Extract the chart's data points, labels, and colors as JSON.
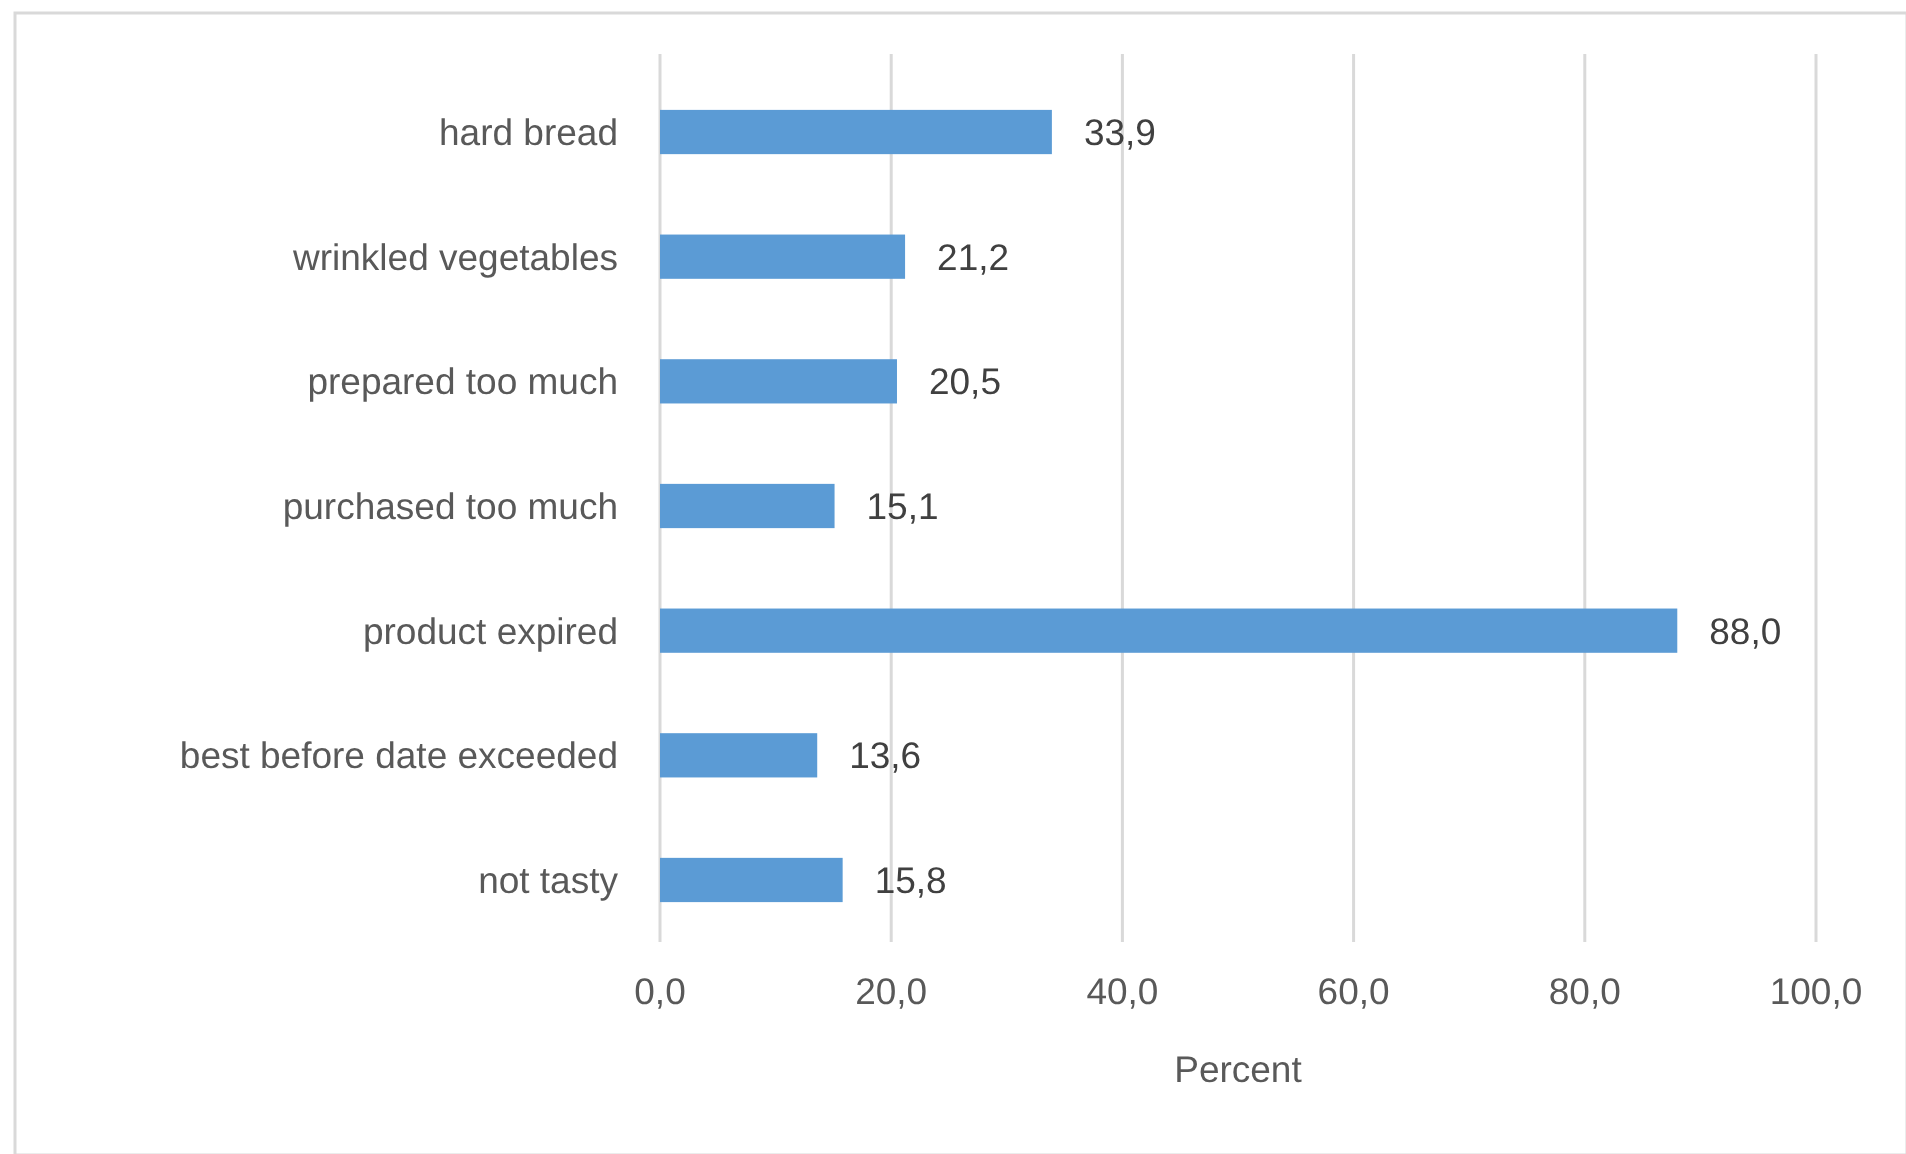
{
  "chart_data": {
    "type": "bar",
    "orientation": "horizontal",
    "xlabel": "Percent",
    "categories": [
      "hard bread",
      "wrinkled vegetables",
      "prepared too much",
      "purchased too much",
      "product expired",
      "best before date exceeded",
      "not tasty"
    ],
    "values": [
      33.9,
      21.2,
      20.5,
      15.1,
      88.0,
      13.6,
      15.8
    ],
    "value_labels": [
      "33,9",
      "21,2",
      "20,5",
      "15,1",
      "88,0",
      "13,6",
      "15,8"
    ],
    "color": "#5b9bd5",
    "xlim": [
      0,
      100
    ],
    "xticks": [
      {
        "value": 0,
        "label": "0,0"
      },
      {
        "value": 20,
        "label": "20,0"
      },
      {
        "value": 40,
        "label": "40,0"
      },
      {
        "value": 60,
        "label": "60,0"
      },
      {
        "value": 80,
        "label": "80,0"
      },
      {
        "value": 100,
        "label": "100,0"
      }
    ],
    "grid": "x"
  }
}
